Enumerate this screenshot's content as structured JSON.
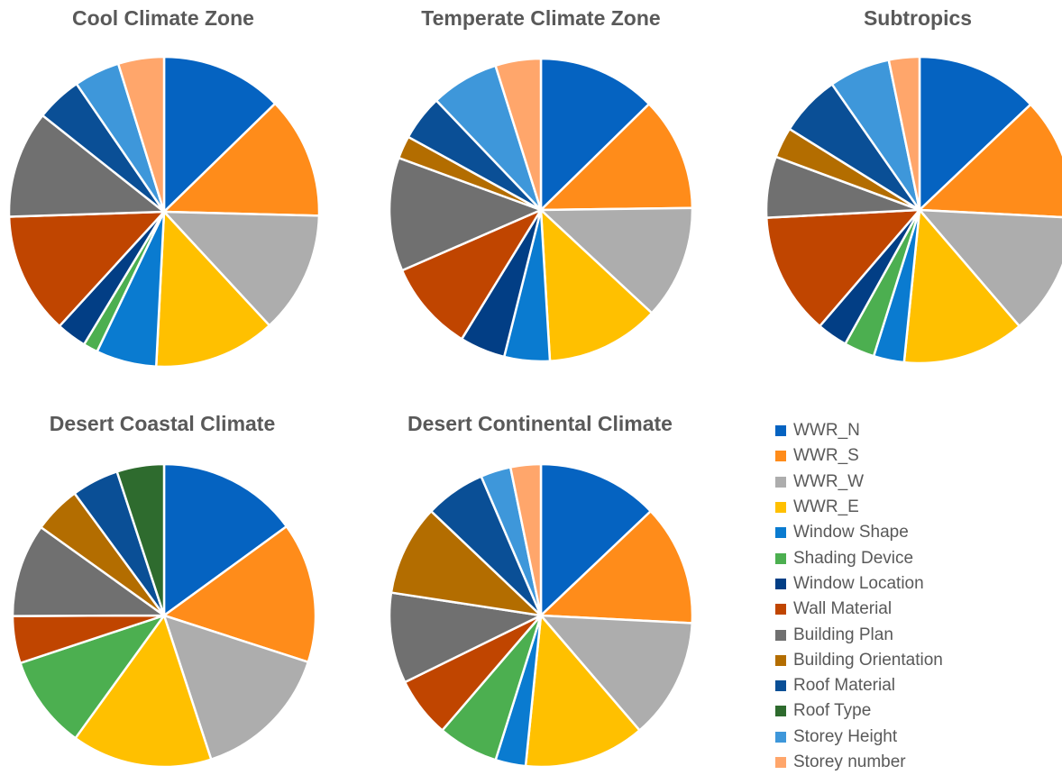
{
  "chart_data": [
    {
      "type": "pie",
      "title": "Cool Climate Zone",
      "slices": [
        {
          "label": "WWR_N",
          "value": 12.5
        },
        {
          "label": "WWR_S",
          "value": 12.5
        },
        {
          "label": "WWR_W",
          "value": 12.5
        },
        {
          "label": "WWR_E",
          "value": 12.5
        },
        {
          "label": "Window Shape",
          "value": 6.2
        },
        {
          "label": "Shading Device",
          "value": 1.5
        },
        {
          "label": "Window Location",
          "value": 3.1
        },
        {
          "label": "Wall Material",
          "value": 12.5
        },
        {
          "label": "Building Plan",
          "value": 11.0
        },
        {
          "label": "Building Orientation",
          "value": 0
        },
        {
          "label": "Roof Material",
          "value": 4.7
        },
        {
          "label": "Roof Type",
          "value": 0
        },
        {
          "label": "Storey Height",
          "value": 4.7
        },
        {
          "label": "Storey number",
          "value": 4.7
        }
      ]
    },
    {
      "type": "pie",
      "title": "Temperate Climate Zone",
      "slices": [
        {
          "label": "WWR_N",
          "value": 12.0
        },
        {
          "label": "WWR_S",
          "value": 11.5
        },
        {
          "label": "WWR_W",
          "value": 11.5
        },
        {
          "label": "WWR_E",
          "value": 11.5
        },
        {
          "label": "Window Shape",
          "value": 4.6
        },
        {
          "label": "Shading Device",
          "value": 0
        },
        {
          "label": "Window Location",
          "value": 4.6
        },
        {
          "label": "Wall Material",
          "value": 9.2
        },
        {
          "label": "Building Plan",
          "value": 11.5
        },
        {
          "label": "Building Orientation",
          "value": 2.3
        },
        {
          "label": "Roof Material",
          "value": 4.6
        },
        {
          "label": "Roof Type",
          "value": 0
        },
        {
          "label": "Storey Height",
          "value": 6.9
        },
        {
          "label": "Storey number",
          "value": 4.6
        }
      ]
    },
    {
      "type": "pie",
      "title": "Subtropics",
      "slices": [
        {
          "label": "WWR_N",
          "value": 12.0
        },
        {
          "label": "WWR_S",
          "value": 12.0
        },
        {
          "label": "WWR_W",
          "value": 12.0
        },
        {
          "label": "WWR_E",
          "value": 12.0
        },
        {
          "label": "Window Shape",
          "value": 3.0
        },
        {
          "label": "Shading Device",
          "value": 3.0
        },
        {
          "label": "Window Location",
          "value": 3.0
        },
        {
          "label": "Wall Material",
          "value": 12.0
        },
        {
          "label": "Building Plan",
          "value": 6.0
        },
        {
          "label": "Building Orientation",
          "value": 3.0
        },
        {
          "label": "Roof Material",
          "value": 6.0
        },
        {
          "label": "Roof Type",
          "value": 0
        },
        {
          "label": "Storey Height",
          "value": 6.0
        },
        {
          "label": "Storey number",
          "value": 3.0
        }
      ]
    },
    {
      "type": "pie",
      "title": "Desert Coastal Climate",
      "slices": [
        {
          "label": "WWR_N",
          "value": 14.0
        },
        {
          "label": "WWR_S",
          "value": 14.0
        },
        {
          "label": "WWR_W",
          "value": 14.0
        },
        {
          "label": "WWR_E",
          "value": 14.0
        },
        {
          "label": "Window Shape",
          "value": 0
        },
        {
          "label": "Shading Device",
          "value": 9.3
        },
        {
          "label": "Window Location",
          "value": 0
        },
        {
          "label": "Wall Material",
          "value": 4.7
        },
        {
          "label": "Building Plan",
          "value": 9.3
        },
        {
          "label": "Building Orientation",
          "value": 4.7
        },
        {
          "label": "Roof Material",
          "value": 4.7
        },
        {
          "label": "Roof Type",
          "value": 4.7
        },
        {
          "label": "Storey Height",
          "value": 0
        },
        {
          "label": "Storey number",
          "value": 0
        }
      ]
    },
    {
      "type": "pie",
      "title": "Desert Continental Climate",
      "slices": [
        {
          "label": "WWR_N",
          "value": 12.0
        },
        {
          "label": "WWR_S",
          "value": 12.0
        },
        {
          "label": "WWR_W",
          "value": 12.0
        },
        {
          "label": "WWR_E",
          "value": 12.0
        },
        {
          "label": "Window Shape",
          "value": 3.0
        },
        {
          "label": "Shading Device",
          "value": 6.0
        },
        {
          "label": "Window Location",
          "value": 0
        },
        {
          "label": "Wall Material",
          "value": 6.0
        },
        {
          "label": "Building Plan",
          "value": 9.0
        },
        {
          "label": "Building Orientation",
          "value": 9.0
        },
        {
          "label": "Roof Material",
          "value": 6.0
        },
        {
          "label": "Roof Type",
          "value": 0
        },
        {
          "label": "Storey Height",
          "value": 3.0
        },
        {
          "label": "Storey number",
          "value": 3.0
        }
      ]
    }
  ],
  "legend": [
    {
      "label": "WWR_N",
      "color": "#0563C1"
    },
    {
      "label": "WWR_S",
      "color": "#FF8C1A"
    },
    {
      "label": "WWR_W",
      "color": "#ADADAD"
    },
    {
      "label": "WWR_E",
      "color": "#FFC000"
    },
    {
      "label": "Window Shape",
      "color": "#0A7BD0"
    },
    {
      "label": "Shading Device",
      "color": "#4CAF50"
    },
    {
      "label": "Window Location",
      "color": "#023E85"
    },
    {
      "label": "Wall Material",
      "color": "#C04500"
    },
    {
      "label": "Building Plan",
      "color": "#707070"
    },
    {
      "label": "Building Orientation",
      "color": "#B36D00"
    },
    {
      "label": "Roof Material",
      "color": "#0A4F96"
    },
    {
      "label": "Roof Type",
      "color": "#2E6B2E"
    },
    {
      "label": "Storey Height",
      "color": "#3E97DA"
    },
    {
      "label": "Storey number",
      "color": "#FFA66B"
    }
  ]
}
